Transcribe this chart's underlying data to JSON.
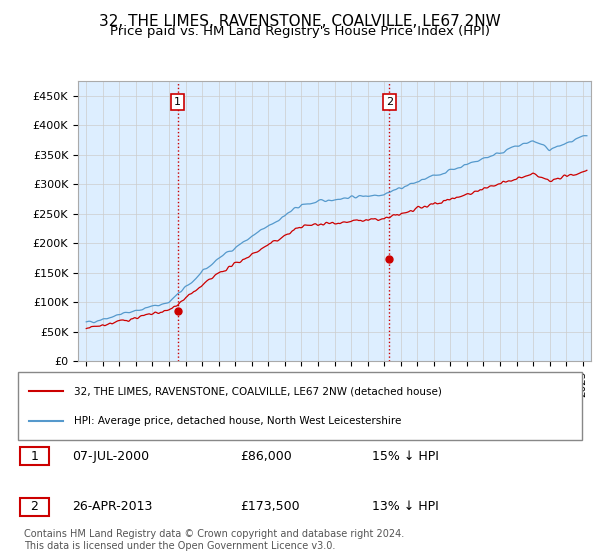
{
  "title": "32, THE LIMES, RAVENSTONE, COALVILLE, LE67 2NW",
  "subtitle": "Price paid vs. HM Land Registry's House Price Index (HPI)",
  "title_fontsize": 11,
  "subtitle_fontsize": 9.5,
  "ylim": [
    0,
    475000
  ],
  "yticks": [
    0,
    50000,
    100000,
    150000,
    200000,
    250000,
    300000,
    350000,
    400000,
    450000
  ],
  "ytick_labels": [
    "£0",
    "£50K",
    "£100K",
    "£150K",
    "£200K",
    "£250K",
    "£300K",
    "£350K",
    "£400K",
    "£450K"
  ],
  "xlim_start": 1994.5,
  "xlim_end": 2025.5,
  "hpi_color": "#5599cc",
  "price_color": "#cc0000",
  "vline_color": "#cc0000",
  "grid_color": "#cccccc",
  "chart_bg_color": "#ddeeff",
  "background_color": "#ffffff",
  "sale1_x": 2000.52,
  "sale1_y": 86000,
  "sale1_label": "1",
  "sale2_x": 2013.32,
  "sale2_y": 173500,
  "sale2_label": "2",
  "legend_line1": "32, THE LIMES, RAVENSTONE, COALVILLE, LE67 2NW (detached house)",
  "legend_line2": "HPI: Average price, detached house, North West Leicestershire",
  "table_row1": [
    "1",
    "07-JUL-2000",
    "£86,000",
    "15% ↓ HPI"
  ],
  "table_row2": [
    "2",
    "26-APR-2013",
    "£173,500",
    "13% ↓ HPI"
  ],
  "footnote": "Contains HM Land Registry data © Crown copyright and database right 2024.\nThis data is licensed under the Open Government Licence v3.0.",
  "footnote_fontsize": 7.0
}
